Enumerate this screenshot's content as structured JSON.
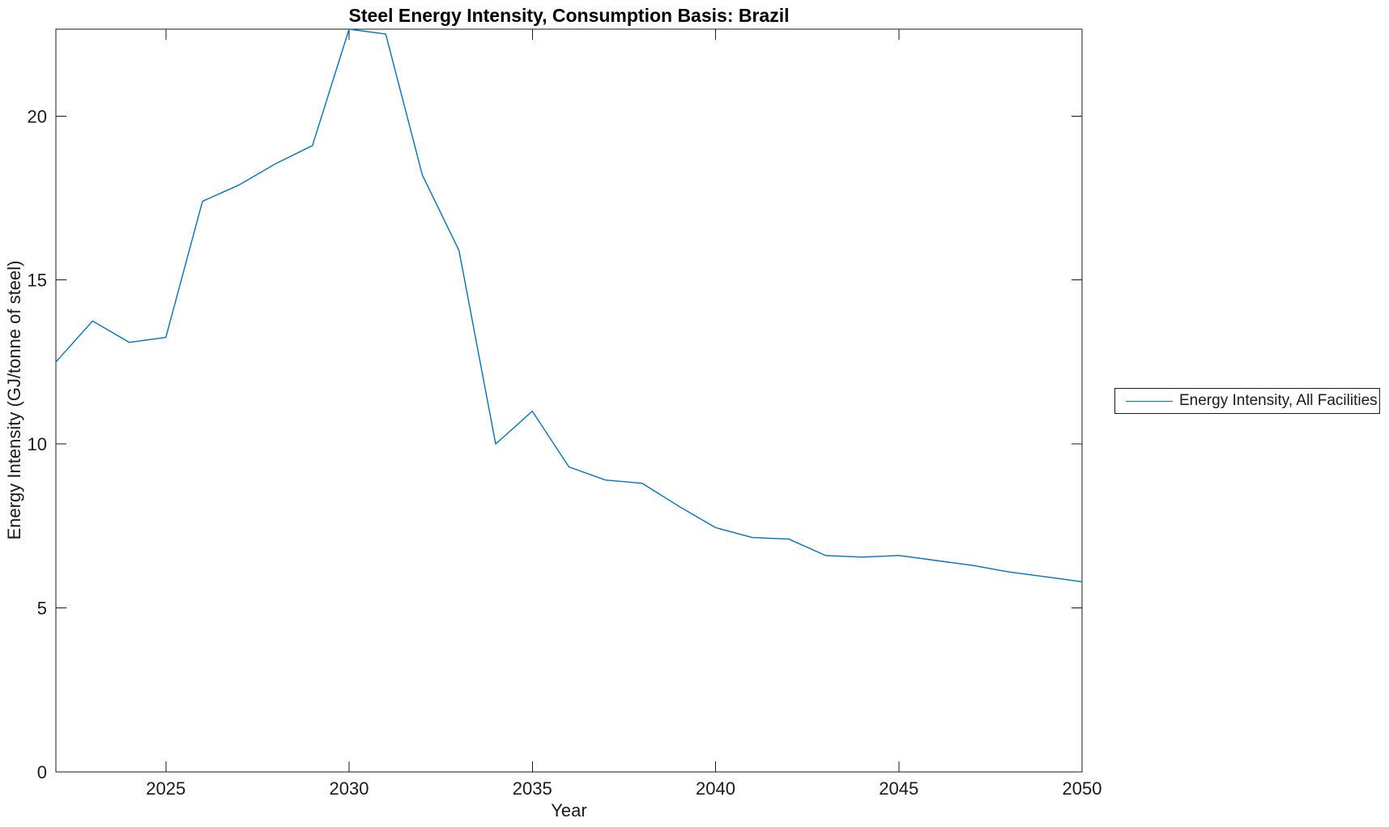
{
  "chart_data": {
    "type": "line",
    "title": "Steel Energy Intensity, Consumption Basis: Brazil",
    "xlabel": "Year",
    "ylabel": "Energy Intensity (GJ/tonne of steel)",
    "x": [
      2022,
      2023,
      2024,
      2025,
      2026,
      2027,
      2028,
      2029,
      2030,
      2031,
      2032,
      2033,
      2034,
      2035,
      2036,
      2037,
      2038,
      2039,
      2040,
      2041,
      2042,
      2043,
      2044,
      2045,
      2046,
      2047,
      2048,
      2049,
      2050
    ],
    "series": [
      {
        "name": "Energy Intensity, All Facilities",
        "color": "#0072BD",
        "values": [
          12.5,
          13.75,
          13.1,
          13.25,
          17.4,
          17.9,
          18.55,
          19.1,
          22.65,
          22.5,
          18.2,
          15.9,
          10.0,
          11.0,
          9.3,
          8.9,
          8.8,
          8.1,
          7.45,
          7.15,
          7.1,
          6.6,
          6.55,
          6.6,
          6.45,
          6.3,
          6.1,
          5.95,
          5.8
        ]
      }
    ],
    "xlim": [
      2022,
      2050
    ],
    "ylim": [
      0,
      22.65
    ],
    "xticks": [
      2025,
      2030,
      2035,
      2040,
      2045,
      2050
    ],
    "yticks": [
      0,
      5,
      10,
      15,
      20
    ],
    "grid": false,
    "legend_position": "right-outside"
  },
  "colors": {
    "line": "#0072BD",
    "axis": "#1a1a1a",
    "tick_text": "#1a1a1a",
    "background": "#ffffff"
  }
}
